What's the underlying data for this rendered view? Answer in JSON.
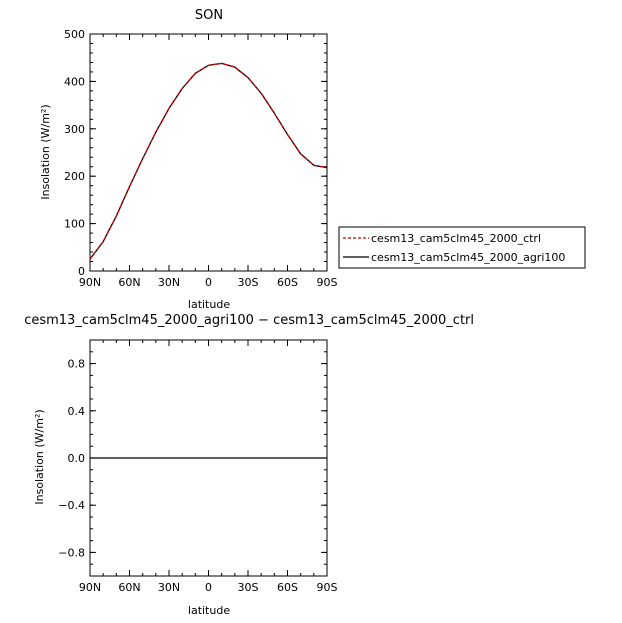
{
  "chart_data": [
    {
      "type": "line",
      "title": "SON",
      "xlabel": "latitude",
      "ylabel": "Insolation (W/m²)",
      "xlim": [
        90,
        -90
      ],
      "ylim": [
        0,
        500
      ],
      "x_tick_values": [
        90,
        60,
        30,
        0,
        -30,
        -60,
        -90
      ],
      "x_tick_labels": [
        "90N",
        "60N",
        "30N",
        "0",
        "30S",
        "60S",
        "90S"
      ],
      "y_ticks": [
        0,
        100,
        200,
        300,
        400,
        500
      ],
      "y_tick_labels": [
        "0",
        "100",
        "200",
        "300",
        "400",
        "500"
      ],
      "legend_position": "right",
      "x": [
        90,
        80,
        70,
        60,
        50,
        40,
        30,
        20,
        10,
        0,
        -10,
        -20,
        -30,
        -40,
        -50,
        -60,
        -70,
        -80,
        -90
      ],
      "series": [
        {
          "name": "cesm13_cam5clm45_2000_ctrl",
          "color": "#cc0000",
          "dash": "dashed",
          "values": [
            25,
            62,
            116,
            178,
            237,
            293,
            343,
            385,
            417,
            434,
            438,
            430,
            408,
            375,
            333,
            288,
            247,
            223,
            218
          ]
        },
        {
          "name": "cesm13_cam5clm45_2000_agri100",
          "color": "#000000",
          "dash": "solid",
          "values": [
            25,
            62,
            116,
            178,
            237,
            293,
            343,
            385,
            417,
            434,
            438,
            430,
            408,
            375,
            333,
            288,
            247,
            223,
            218
          ]
        }
      ]
    },
    {
      "type": "line",
      "title": "cesm13_cam5clm45_2000_agri100 − cesm13_cam5clm45_2000_ctrl",
      "xlabel": "latitude",
      "ylabel": "Insolation (W/m²)",
      "xlim": [
        90,
        -90
      ],
      "ylim": [
        -1,
        1
      ],
      "x_tick_values": [
        90,
        60,
        30,
        0,
        -30,
        -60,
        -90
      ],
      "x_tick_labels": [
        "90N",
        "60N",
        "30N",
        "0",
        "30S",
        "60S",
        "90S"
      ],
      "y_ticks": [
        -0.8,
        -0.4,
        0.0,
        0.4,
        0.8
      ],
      "y_tick_labels": [
        "−0.8",
        "−0.4",
        "0.0",
        "0.4",
        "0.8"
      ],
      "x": [
        90,
        -90
      ],
      "series": [
        {
          "color": "#000000",
          "dash": "solid",
          "values": [
            0,
            0
          ]
        }
      ]
    }
  ]
}
